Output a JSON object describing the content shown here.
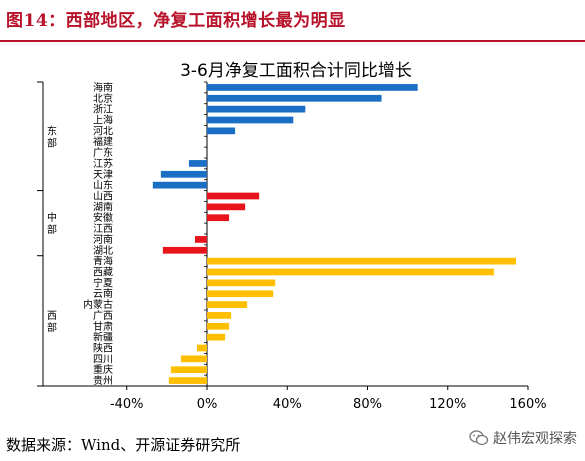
{
  "header": {
    "title": "图14：西部地区，净复工面积增长最为明显"
  },
  "footer": {
    "source": "数据来源：Wind、开源证券研究所",
    "watermark": "赵伟宏观探索"
  },
  "colors": {
    "east": "#1a6fc4",
    "central": "#e8141b",
    "west": "#ffbf00",
    "accent": "#b8122a"
  },
  "chart_data": {
    "type": "bar",
    "orientation": "horizontal",
    "title": "3-6月净复工面积合计同比增长",
    "xlim": [
      -0.4,
      1.6
    ],
    "xticks": [
      -0.4,
      0,
      0.4,
      0.8,
      1.2,
      1.6
    ],
    "xtick_labels": [
      "-40%",
      "0%",
      "40%",
      "80%",
      "120%",
      "160%"
    ],
    "grid": false,
    "groups": [
      {
        "name": "东部",
        "color_key": "east",
        "categories": [
          "海南",
          "北京",
          "浙江",
          "上海",
          "河北",
          "福建",
          "广东",
          "江苏",
          "天津",
          "山东"
        ],
        "values": [
          1.05,
          0.87,
          0.49,
          0.43,
          0.14,
          0.0,
          0.0,
          -0.09,
          -0.23,
          -0.27
        ]
      },
      {
        "name": "中部",
        "color_key": "central",
        "categories": [
          "山西",
          "湖南",
          "安徽",
          "江西",
          "河南",
          "湖北"
        ],
        "values": [
          0.26,
          0.19,
          0.11,
          0.0,
          -0.06,
          -0.22
        ]
      },
      {
        "name": "西部",
        "color_key": "west",
        "categories": [
          "青海",
          "西藏",
          "宁夏",
          "云南",
          "内蒙古",
          "广西",
          "甘肃",
          "新疆",
          "陕西",
          "四川",
          "重庆",
          "贵州"
        ],
        "values": [
          1.54,
          1.43,
          0.34,
          0.33,
          0.2,
          0.12,
          0.11,
          0.09,
          -0.05,
          -0.13,
          -0.18,
          -0.19
        ]
      }
    ]
  }
}
